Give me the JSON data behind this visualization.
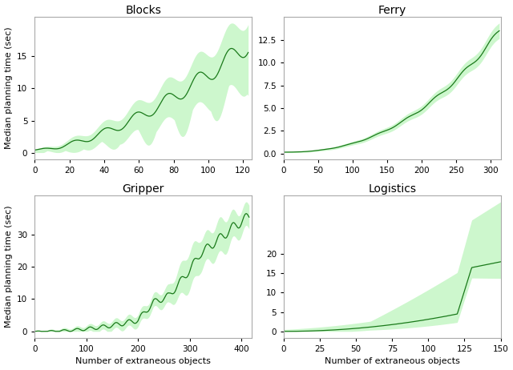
{
  "line_color": "#1a7a1a",
  "fill_color": "#90ee90",
  "fill_alpha": 0.45,
  "titles": [
    "Blocks",
    "Ferry",
    "Gripper",
    "Logistics"
  ],
  "ylabel": "Median planning time (sec)",
  "xlabel": "Number of extraneous objects",
  "plots": {
    "Blocks": {
      "x_max": 125,
      "x_ticks": [
        0,
        20,
        40,
        60,
        80,
        100,
        120
      ],
      "y_ticks": [
        0,
        5,
        10,
        15
      ]
    },
    "Ferry": {
      "x_max": 315,
      "x_ticks": [
        0,
        50,
        100,
        150,
        200,
        250,
        300
      ],
      "y_ticks": [
        0.0,
        2.5,
        5.0,
        7.5,
        10.0,
        12.5
      ]
    },
    "Gripper": {
      "x_max": 420,
      "x_ticks": [
        0,
        100,
        200,
        300,
        400
      ],
      "y_ticks": [
        0,
        10,
        20,
        30
      ]
    },
    "Logistics": {
      "x_max": 150,
      "x_ticks": [
        0,
        25,
        50,
        75,
        100,
        125,
        150
      ],
      "y_ticks": [
        0,
        5,
        10,
        15,
        20
      ]
    }
  }
}
